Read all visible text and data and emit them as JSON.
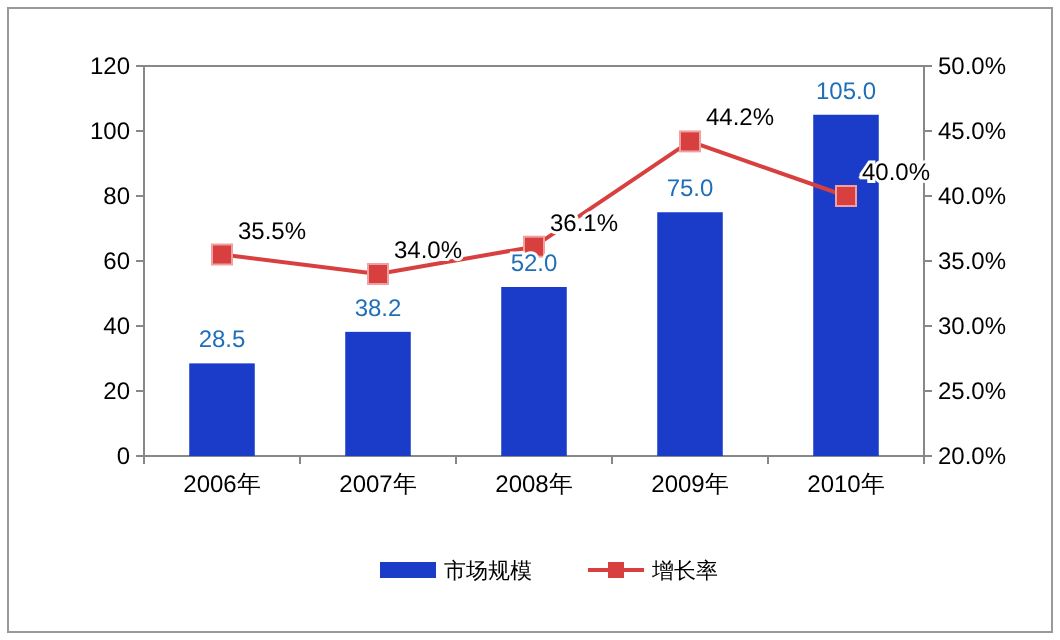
{
  "chart_data": {
    "type": "bar",
    "categories": [
      "2006年",
      "2007年",
      "2008年",
      "2009年",
      "2010年"
    ],
    "series": [
      {
        "name": "市场规模",
        "color": "#1a3cc8",
        "values": [
          28.5,
          38.2,
          52.0,
          75.0,
          105.0
        ],
        "value_labels": [
          "28.5",
          "38.2",
          "52.0",
          "75.0",
          "105.0"
        ]
      },
      {
        "name": "增长率",
        "type": "line",
        "axis": "y2",
        "marker": "square",
        "color": "#d84040",
        "values": [
          35.5,
          34.0,
          36.1,
          44.2,
          40.0
        ],
        "value_labels": [
          "35.5%",
          "34.0%",
          "36.1%",
          "44.2%",
          "40.0%"
        ]
      }
    ],
    "ylim": [
      0,
      120
    ],
    "yticks": [
      0,
      20,
      40,
      60,
      80,
      100,
      120
    ],
    "y2lim": [
      20,
      50
    ],
    "y2ticks": [
      {
        "value": 20,
        "label": "20.0%"
      },
      {
        "value": 25,
        "label": "25.0%"
      },
      {
        "value": 30,
        "label": "30.0%"
      },
      {
        "value": 35,
        "label": "35.0%"
      },
      {
        "value": 40,
        "label": "40.0%"
      },
      {
        "value": 45,
        "label": "45.0%"
      },
      {
        "value": 50,
        "label": "50.0%"
      }
    ],
    "grid": false,
    "legend": "bottom"
  }
}
